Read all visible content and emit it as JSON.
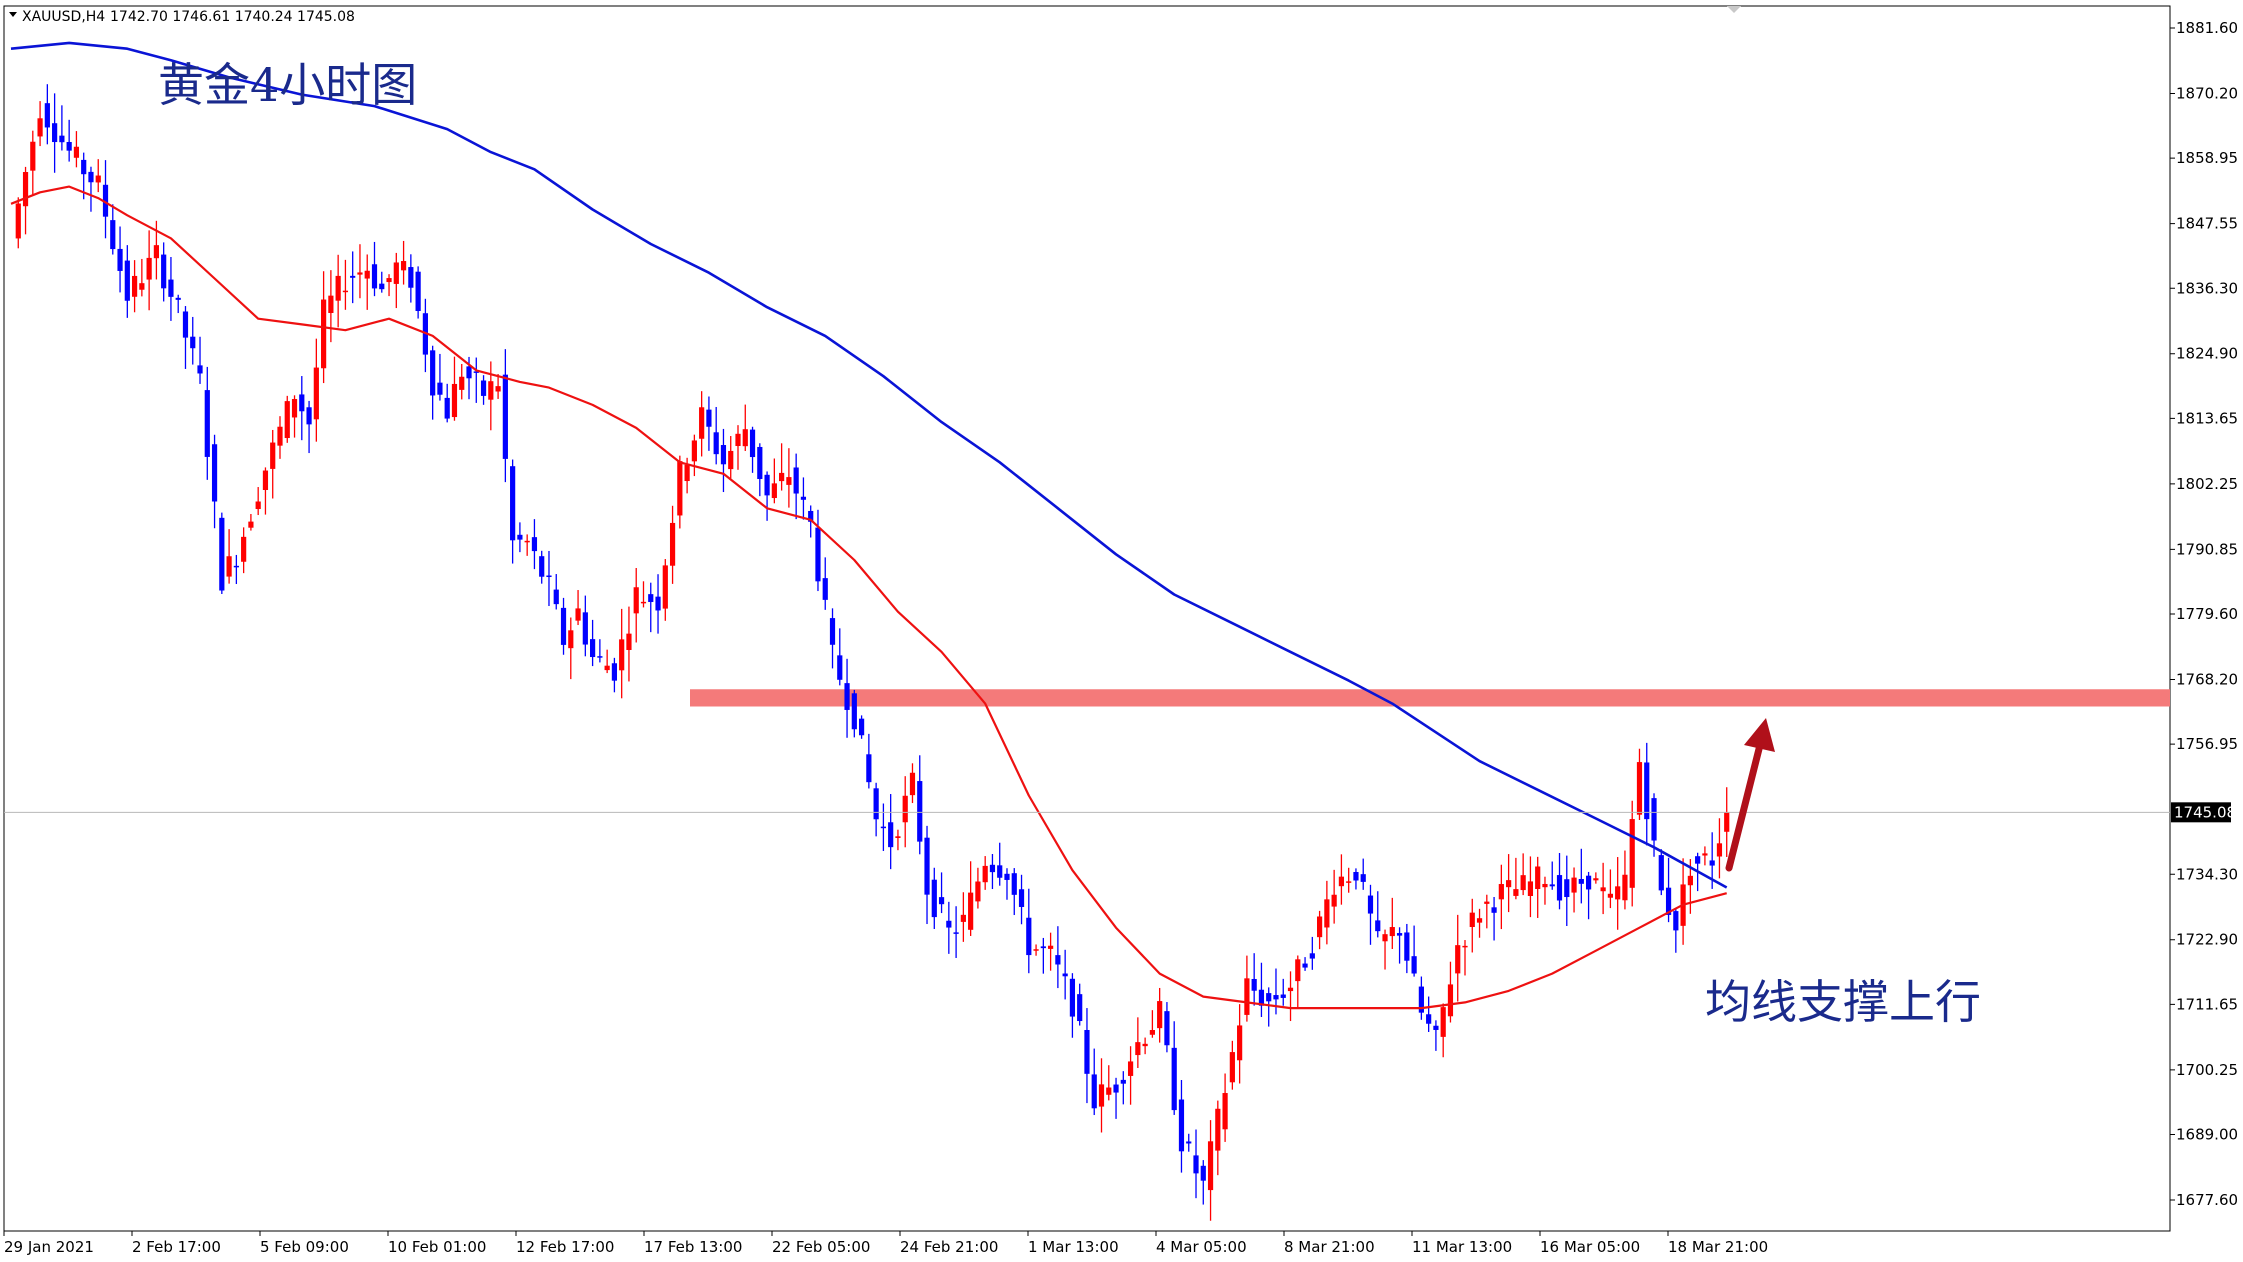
{
  "header": {
    "symbol_text": "XAUUSD,H4",
    "ohlc_text": "1742.70 1746.61 1740.24 1745.08"
  },
  "annotations": {
    "title": "黄金4小时图",
    "note": "均线支撑上行"
  },
  "colors": {
    "bull": "#ff0000",
    "bear": "#0000ff",
    "ma_fast": "#ee1111",
    "ma_slow": "#0a14d6",
    "zone": "#f47a7a",
    "arrow": "#b0101a",
    "price_tag_bg": "#000000"
  },
  "chart_data": {
    "type": "candlestick",
    "symbol": "XAUUSD",
    "timeframe": "H4",
    "current_price": 1745.08,
    "current_price_label": "1745.08",
    "ylim": [
      1670.0,
      1888.0
    ],
    "y_ticks": [
      "1881.60",
      "1870.20",
      "1858.95",
      "1847.55",
      "1836.30",
      "1824.90",
      "1813.65",
      "1802.25",
      "1790.85",
      "1779.60",
      "1768.20",
      "1756.95",
      "1745.08",
      "1734.30",
      "1722.90",
      "1711.65",
      "1700.25",
      "1689.00",
      "1677.60"
    ],
    "x_ticks": [
      "29 Jan 2021",
      "2 Feb 17:00",
      "5 Feb 09:00",
      "10 Feb 01:00",
      "12 Feb 17:00",
      "17 Feb 13:00",
      "22 Feb 05:00",
      "24 Feb 21:00",
      "1 Mar 13:00",
      "4 Mar 05:00",
      "8 Mar 21:00",
      "11 Mar 13:00",
      "16 Mar 05:00",
      "18 Mar 21:00"
    ],
    "resistance_zone": {
      "low": 1763.5,
      "high": 1766.5
    },
    "anchors": [
      [
        0,
        1845
      ],
      [
        4,
        1868
      ],
      [
        8,
        1860
      ],
      [
        12,
        1854
      ],
      [
        16,
        1835
      ],
      [
        20,
        1842
      ],
      [
        23,
        1832
      ],
      [
        26,
        1820
      ],
      [
        29,
        1786
      ],
      [
        31,
        1790
      ],
      [
        35,
        1805
      ],
      [
        39,
        1818
      ],
      [
        41,
        1813
      ],
      [
        43,
        1832
      ],
      [
        46,
        1838
      ],
      [
        49,
        1840
      ],
      [
        51,
        1836
      ],
      [
        53,
        1840
      ],
      [
        55,
        1838
      ],
      [
        58,
        1820
      ],
      [
        60,
        1815
      ],
      [
        62,
        1822
      ],
      [
        65,
        1818
      ],
      [
        67,
        1820
      ],
      [
        69,
        1792
      ],
      [
        71,
        1792
      ],
      [
        74,
        1784
      ],
      [
        76,
        1775
      ],
      [
        78,
        1780
      ],
      [
        80,
        1772
      ],
      [
        83,
        1770
      ],
      [
        86,
        1783
      ],
      [
        89,
        1782
      ],
      [
        92,
        1804
      ],
      [
        95,
        1814
      ],
      [
        98,
        1806
      ],
      [
        101,
        1812
      ],
      [
        104,
        1800
      ],
      [
        107,
        1804
      ],
      [
        110,
        1795
      ],
      [
        113,
        1772
      ],
      [
        116,
        1762
      ],
      [
        119,
        1744
      ],
      [
        121,
        1740
      ],
      [
        124,
        1750
      ],
      [
        126,
        1732
      ],
      [
        129,
        1724
      ],
      [
        131,
        1726
      ],
      [
        134,
        1737
      ],
      [
        137,
        1735
      ],
      [
        140,
        1722
      ],
      [
        143,
        1720
      ],
      [
        146,
        1712
      ],
      [
        149,
        1695
      ],
      [
        152,
        1698
      ],
      [
        155,
        1705
      ],
      [
        158,
        1710
      ],
      [
        161,
        1688
      ],
      [
        164,
        1680
      ],
      [
        167,
        1697
      ],
      [
        170,
        1715
      ],
      [
        173,
        1712
      ],
      [
        176,
        1715
      ],
      [
        179,
        1722
      ],
      [
        182,
        1733
      ],
      [
        185,
        1735
      ],
      [
        188,
        1722
      ],
      [
        191,
        1725
      ],
      [
        194,
        1710
      ],
      [
        196,
        1705
      ],
      [
        199,
        1722
      ],
      [
        202,
        1728
      ],
      [
        205,
        1731
      ],
      [
        208,
        1732
      ],
      [
        211,
        1734
      ],
      [
        214,
        1731
      ],
      [
        217,
        1734
      ],
      [
        220,
        1729
      ],
      [
        222,
        1733
      ],
      [
        224,
        1754
      ],
      [
        227,
        1731
      ],
      [
        229,
        1726
      ],
      [
        231,
        1736
      ],
      [
        234,
        1737
      ],
      [
        236,
        1745
      ]
    ],
    "ma_fast": [
      [
        0,
        1851
      ],
      [
        4,
        1853
      ],
      [
        8,
        1854
      ],
      [
        12,
        1852
      ],
      [
        16,
        1849
      ],
      [
        22,
        1845
      ],
      [
        28,
        1838
      ],
      [
        34,
        1831
      ],
      [
        40,
        1830
      ],
      [
        46,
        1829
      ],
      [
        52,
        1831
      ],
      [
        58,
        1828
      ],
      [
        64,
        1822
      ],
      [
        70,
        1820
      ],
      [
        74,
        1819
      ],
      [
        80,
        1816
      ],
      [
        86,
        1812
      ],
      [
        92,
        1806
      ],
      [
        98,
        1804
      ],
      [
        104,
        1798
      ],
      [
        110,
        1796
      ],
      [
        116,
        1789
      ],
      [
        122,
        1780
      ],
      [
        128,
        1773
      ],
      [
        134,
        1764
      ],
      [
        140,
        1748
      ],
      [
        146,
        1735
      ],
      [
        152,
        1725
      ],
      [
        158,
        1717
      ],
      [
        164,
        1713
      ],
      [
        170,
        1712
      ],
      [
        176,
        1711
      ],
      [
        182,
        1711
      ],
      [
        188,
        1711
      ],
      [
        194,
        1711
      ],
      [
        200,
        1712
      ],
      [
        206,
        1714
      ],
      [
        212,
        1717
      ],
      [
        218,
        1721
      ],
      [
        224,
        1725
      ],
      [
        230,
        1729
      ],
      [
        236,
        1731
      ]
    ],
    "ma_slow": [
      [
        0,
        1878
      ],
      [
        8,
        1879
      ],
      [
        16,
        1878
      ],
      [
        22,
        1876
      ],
      [
        30,
        1873
      ],
      [
        40,
        1870
      ],
      [
        50,
        1868
      ],
      [
        60,
        1864
      ],
      [
        66,
        1860
      ],
      [
        72,
        1857
      ],
      [
        80,
        1850
      ],
      [
        88,
        1844
      ],
      [
        96,
        1839
      ],
      [
        104,
        1833
      ],
      [
        112,
        1828
      ],
      [
        120,
        1821
      ],
      [
        128,
        1813
      ],
      [
        136,
        1806
      ],
      [
        144,
        1798
      ],
      [
        152,
        1790
      ],
      [
        160,
        1783
      ],
      [
        168,
        1778
      ],
      [
        176,
        1773
      ],
      [
        184,
        1768
      ],
      [
        190,
        1764
      ],
      [
        196,
        1759
      ],
      [
        202,
        1754
      ],
      [
        210,
        1749
      ],
      [
        218,
        1744
      ],
      [
        226,
        1739
      ],
      [
        236,
        1732
      ]
    ]
  }
}
